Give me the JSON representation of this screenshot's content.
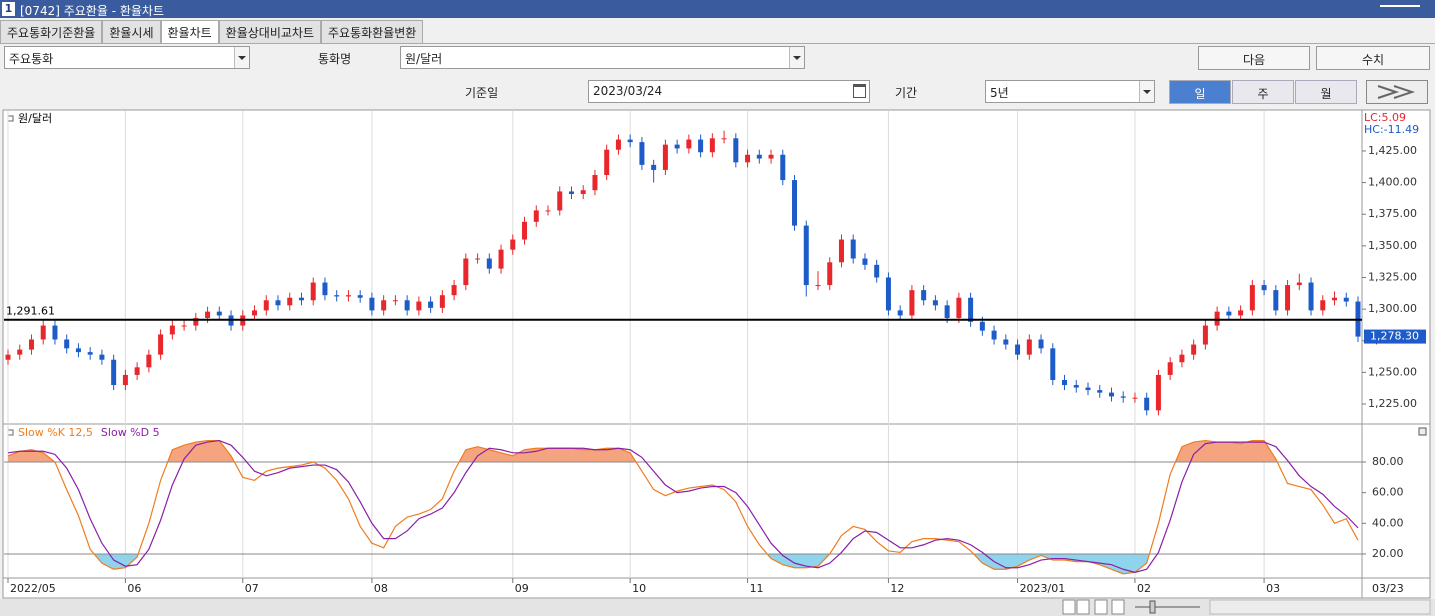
{
  "window": {
    "number": "1",
    "title": "[0742] 주요환율 - 환율차트"
  },
  "tabs": [
    {
      "label": "주요통화기준환율",
      "active": false
    },
    {
      "label": "환율시세",
      "active": false
    },
    {
      "label": "환율차트",
      "active": true
    },
    {
      "label": "환율상대비교차트",
      "active": false
    },
    {
      "label": "주요통화환율변환",
      "active": false
    }
  ],
  "controls": {
    "group": "주요통화",
    "currency_label": "통화명",
    "currency": "원/달러",
    "next": "다음",
    "figures": "수치",
    "date_label": "기준일",
    "date": "2023/03/24",
    "period_label": "기간",
    "period": "5년",
    "intervals": [
      {
        "label": "일",
        "active": true
      },
      {
        "label": "주",
        "active": false
      },
      {
        "label": "월",
        "active": false
      }
    ]
  },
  "chart_data": [
    {
      "type": "candlestick",
      "legend": "원/달러",
      "up_color": "#e8262b",
      "down_color": "#1c5bc8",
      "categories": [
        "2022/05",
        null,
        null,
        null,
        null,
        null,
        null,
        null,
        null,
        null,
        "06",
        null,
        null,
        null,
        null,
        null,
        null,
        null,
        null,
        null,
        "07",
        null,
        null,
        null,
        null,
        null,
        null,
        null,
        null,
        null,
        null,
        "08",
        null,
        null,
        null,
        null,
        null,
        null,
        null,
        null,
        null,
        null,
        null,
        "09",
        null,
        null,
        null,
        null,
        null,
        null,
        null,
        null,
        null,
        "10",
        null,
        null,
        null,
        null,
        null,
        null,
        null,
        null,
        null,
        "11",
        null,
        null,
        null,
        null,
        null,
        null,
        null,
        null,
        null,
        null,
        null,
        "12",
        null,
        null,
        null,
        null,
        null,
        null,
        null,
        null,
        null,
        null,
        "2023/01",
        null,
        null,
        null,
        null,
        null,
        null,
        null,
        null,
        null,
        "02",
        null,
        null,
        null,
        null,
        null,
        null,
        null,
        null,
        null,
        null,
        "03",
        null,
        null,
        null,
        null,
        null,
        null,
        null,
        null
      ],
      "open": [
        1260,
        1264,
        1268,
        1276,
        1287,
        1276,
        1269,
        1266,
        1264,
        1260,
        1240,
        1248,
        1254,
        1264,
        1280,
        1287,
        1287,
        1293,
        1298,
        1295,
        1287,
        1295,
        1299,
        1307,
        1303,
        1309,
        1307,
        1321,
        1311,
        1310,
        1311,
        1309,
        1299,
        1307,
        1307,
        1299,
        1306,
        1301,
        1311,
        1319,
        1340,
        1340,
        1332,
        1347,
        1355,
        1369,
        1378,
        1378,
        1393,
        1391,
        1394,
        1406,
        1426,
        1434,
        1432,
        1414,
        1410,
        1430,
        1427,
        1434,
        1424,
        1435,
        1435,
        1416,
        1422,
        1419,
        1422,
        1402,
        1366,
        1319,
        1319,
        1337,
        1355,
        1340,
        1335,
        1325,
        1299,
        1295,
        1315,
        1307,
        1303,
        1293,
        1309,
        1290,
        1283,
        1276,
        1272,
        1264,
        1276,
        1269,
        1244,
        1240,
        1238,
        1236,
        1234,
        1231,
        1230,
        1230,
        1220,
        1248,
        1258,
        1264,
        1272,
        1287,
        1298,
        1295,
        1299,
        1319,
        1315,
        1299,
        1319,
        1321,
        1299,
        1307,
        1309,
        1306
      ],
      "high": [
        1268,
        1272,
        1280,
        1291,
        1291,
        1280,
        1273,
        1270,
        1268,
        1264,
        1252,
        1258,
        1268,
        1284,
        1291,
        1291,
        1297,
        1302,
        1302,
        1299,
        1299,
        1303,
        1311,
        1311,
        1313,
        1313,
        1325,
        1325,
        1315,
        1315,
        1315,
        1313,
        1311,
        1311,
        1311,
        1310,
        1310,
        1315,
        1323,
        1344,
        1344,
        1344,
        1351,
        1359,
        1373,
        1382,
        1382,
        1397,
        1397,
        1398,
        1410,
        1430,
        1438,
        1438,
        1436,
        1418,
        1434,
        1434,
        1438,
        1438,
        1439,
        1441,
        1439,
        1426,
        1426,
        1426,
        1426,
        1406,
        1370,
        1330,
        1341,
        1359,
        1359,
        1344,
        1339,
        1329,
        1303,
        1319,
        1319,
        1311,
        1307,
        1313,
        1313,
        1294,
        1287,
        1280,
        1276,
        1280,
        1280,
        1273,
        1248,
        1244,
        1242,
        1240,
        1238,
        1235,
        1234,
        1234,
        1252,
        1262,
        1268,
        1276,
        1291,
        1302,
        1302,
        1303,
        1323,
        1323,
        1319,
        1323,
        1328,
        1325,
        1311,
        1314,
        1313,
        1310
      ],
      "low": [
        1256,
        1260,
        1264,
        1272,
        1272,
        1265,
        1262,
        1260,
        1256,
        1236,
        1236,
        1244,
        1250,
        1260,
        1276,
        1283,
        1283,
        1289,
        1291,
        1283,
        1283,
        1291,
        1295,
        1299,
        1299,
        1303,
        1303,
        1307,
        1306,
        1306,
        1305,
        1295,
        1295,
        1303,
        1295,
        1295,
        1297,
        1297,
        1307,
        1315,
        1336,
        1328,
        1328,
        1343,
        1351,
        1365,
        1374,
        1374,
        1387,
        1387,
        1390,
        1402,
        1422,
        1428,
        1410,
        1400,
        1406,
        1423,
        1423,
        1420,
        1420,
        1431,
        1412,
        1412,
        1415,
        1415,
        1398,
        1362,
        1310,
        1315,
        1315,
        1333,
        1336,
        1331,
        1321,
        1295,
        1291,
        1291,
        1303,
        1299,
        1289,
        1289,
        1286,
        1279,
        1272,
        1268,
        1260,
        1260,
        1265,
        1240,
        1236,
        1234,
        1232,
        1230,
        1227,
        1226,
        1226,
        1216,
        1216,
        1244,
        1254,
        1260,
        1268,
        1283,
        1291,
        1291,
        1295,
        1311,
        1295,
        1295,
        1315,
        1295,
        1295,
        1303,
        1302,
        1274
      ],
      "close": [
        1264,
        1268,
        1276,
        1287,
        1276,
        1269,
        1266,
        1264,
        1260,
        1240,
        1248,
        1254,
        1264,
        1280,
        1287,
        1287,
        1293,
        1298,
        1295,
        1287,
        1295,
        1299,
        1307,
        1303,
        1309,
        1307,
        1321,
        1311,
        1310,
        1311,
        1309,
        1299,
        1307,
        1307,
        1299,
        1306,
        1301,
        1311,
        1319,
        1340,
        1340,
        1332,
        1347,
        1355,
        1369,
        1378,
        1378,
        1393,
        1391,
        1394,
        1406,
        1426,
        1434,
        1432,
        1414,
        1410,
        1430,
        1427,
        1434,
        1424,
        1435,
        1435,
        1416,
        1422,
        1419,
        1422,
        1402,
        1366,
        1319,
        1319,
        1337,
        1355,
        1340,
        1335,
        1325,
        1299,
        1295,
        1315,
        1307,
        1303,
        1293,
        1309,
        1290,
        1283,
        1276,
        1272,
        1264,
        1276,
        1269,
        1244,
        1240,
        1238,
        1236,
        1234,
        1231,
        1230,
        1230,
        1220,
        1248,
        1258,
        1264,
        1272,
        1287,
        1298,
        1295,
        1299,
        1319,
        1315,
        1299,
        1319,
        1321,
        1299,
        1307,
        1309,
        1306,
        1278.3
      ],
      "close_label": "1,278.30",
      "last_date": "03/23",
      "reference_line": {
        "value": 1291.61,
        "label": "1,291.61"
      },
      "stats": [
        {
          "label": "LC:5.09",
          "color": "#e8262b"
        },
        {
          "label": "HC:-11.49",
          "color": "#1c5bc8"
        }
      ],
      "ylim": [
        1209.2,
        1455.8
      ],
      "yticks": [
        {
          "value": 1225,
          "label": "1,225.00"
        },
        {
          "value": 1250,
          "label": "1,250.00"
        },
        {
          "value": 1275,
          "label": "1,275.00"
        },
        {
          "value": 1300,
          "label": "1,300.00"
        },
        {
          "value": 1325,
          "label": "1,325.00"
        },
        {
          "value": 1350,
          "label": "1,350.00"
        },
        {
          "value": 1375,
          "label": "1,375.00"
        },
        {
          "value": 1400,
          "label": "1,400.00"
        },
        {
          "value": 1425,
          "label": "1,425.00"
        }
      ]
    },
    {
      "type": "line",
      "series": [
        {
          "name": "Slow %K 12,5",
          "color": "#f07c1e",
          "values": [
            84,
            87,
            88,
            86,
            80,
            62,
            45,
            23,
            14,
            10,
            11,
            18,
            40,
            68,
            88,
            91,
            93,
            94,
            94,
            84,
            70,
            68,
            74,
            76,
            77,
            78,
            80,
            76,
            68,
            56,
            38,
            27,
            24,
            38,
            44,
            46,
            49,
            56,
            74,
            88,
            90,
            88,
            86,
            84,
            88,
            89,
            89,
            89,
            89,
            88,
            88,
            89,
            89,
            86,
            74,
            62,
            58,
            61,
            63,
            64,
            65,
            62,
            54,
            38,
            26,
            17,
            13,
            11,
            11,
            12,
            20,
            32,
            38,
            36,
            28,
            22,
            21,
            28,
            30,
            30,
            29,
            28,
            22,
            14,
            10,
            10,
            12,
            16,
            19,
            16,
            16,
            15,
            15,
            13,
            10,
            7,
            8,
            14,
            40,
            72,
            90,
            93,
            94,
            93,
            93,
            92,
            94,
            94,
            82,
            66,
            64,
            62,
            52,
            40,
            43,
            29
          ]
        },
        {
          "name": "Slow %D 5",
          "color": "#8a1fa8",
          "values": [
            86,
            87,
            87,
            87,
            85,
            76,
            62,
            43,
            27,
            16,
            12,
            13,
            23,
            42,
            65,
            82,
            91,
            93,
            94,
            91,
            83,
            74,
            71,
            73,
            76,
            77,
            78,
            78,
            75,
            67,
            54,
            40,
            30,
            30,
            35,
            43,
            46,
            50,
            60,
            73,
            84,
            89,
            88,
            86,
            86,
            87,
            89,
            89,
            89,
            89,
            88,
            88,
            89,
            88,
            83,
            74,
            65,
            60,
            61,
            63,
            64,
            64,
            60,
            51,
            39,
            27,
            19,
            14,
            12,
            11,
            14,
            21,
            30,
            35,
            34,
            29,
            24,
            24,
            26,
            29,
            30,
            29,
            26,
            21,
            15,
            11,
            11,
            13,
            16,
            17,
            17,
            16,
            15,
            14,
            13,
            10,
            8,
            10,
            21,
            42,
            67,
            85,
            92,
            93,
            93,
            93,
            93,
            93,
            90,
            81,
            71,
            64,
            59,
            51,
            45,
            37
          ]
        }
      ],
      "thresholds": [
        20,
        80
      ],
      "fill_below": "#8fd4ec",
      "fill_above": "#f4a57f",
      "ylim": [
        4.3,
        103.5
      ],
      "yticks": [
        {
          "value": 20,
          "label": "20.00"
        },
        {
          "value": 40,
          "label": "40.00"
        },
        {
          "value": 60,
          "label": "60.00"
        },
        {
          "value": 80,
          "label": "80.00"
        }
      ]
    }
  ]
}
